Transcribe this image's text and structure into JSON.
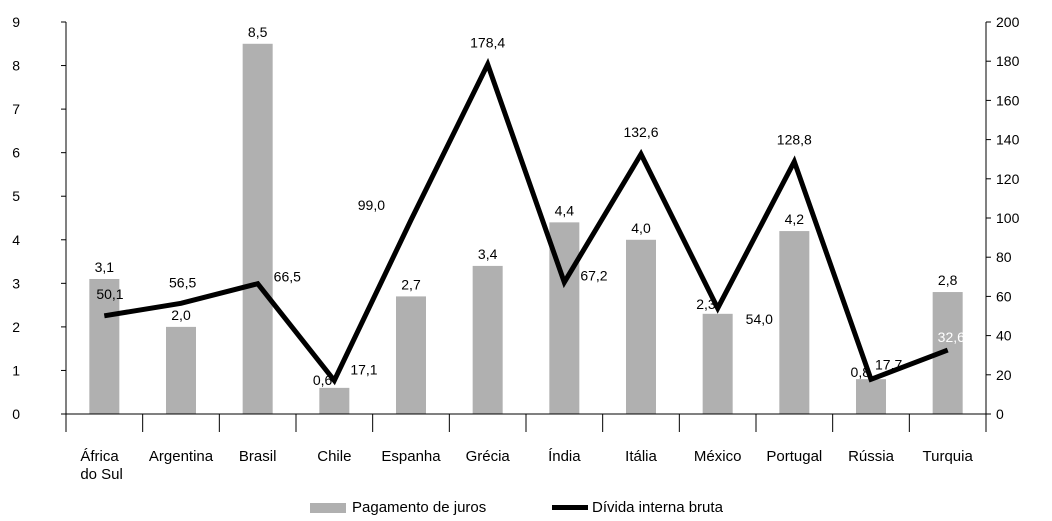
{
  "chart_data": {
    "type": "bar",
    "categories": [
      "África do Sul",
      "Argentina",
      "Brasil",
      "Chile",
      "Espanha",
      "Grécia",
      "Índia",
      "Itália",
      "México",
      "Portugal",
      "Rússia",
      "Turquia"
    ],
    "series": [
      {
        "name": "Pagamento de juros",
        "type": "bar",
        "axis": "left",
        "color": "#b0b0b0",
        "values": [
          3.1,
          2.0,
          8.5,
          0.6,
          2.7,
          3.4,
          4.4,
          4.0,
          2.3,
          4.2,
          0.8,
          2.8
        ],
        "labels": [
          "3,1",
          "2,0",
          "8,5",
          "0,6",
          "2,7",
          "3,4",
          "4,4",
          "4,0",
          "2,3",
          "4,2",
          "0,8",
          "2,8"
        ]
      },
      {
        "name": "Dívida interna bruta",
        "type": "line",
        "axis": "right",
        "color": "#000000",
        "values": [
          50.1,
          56.5,
          66.5,
          17.1,
          99.0,
          178.4,
          67.2,
          132.6,
          54.0,
          128.8,
          17.7,
          32.6
        ],
        "labels": [
          "50,1",
          "56,5",
          "66,5",
          "17,1",
          "99,0",
          "178,4",
          "67,2",
          "132,6",
          "54,0",
          "128,8",
          "17,7",
          "32,6"
        ]
      }
    ],
    "left_axis": {
      "ylim": [
        0,
        9
      ],
      "ticks": [
        "0",
        "1",
        "2",
        "3",
        "4",
        "5",
        "6",
        "7",
        "8",
        "9"
      ]
    },
    "right_axis": {
      "ylim": [
        0,
        200
      ],
      "ticks": [
        "0",
        "20",
        "40",
        "60",
        "80",
        "100",
        "120",
        "140",
        "160",
        "180",
        "200"
      ]
    },
    "grid": false,
    "legend_position": "bottom"
  }
}
